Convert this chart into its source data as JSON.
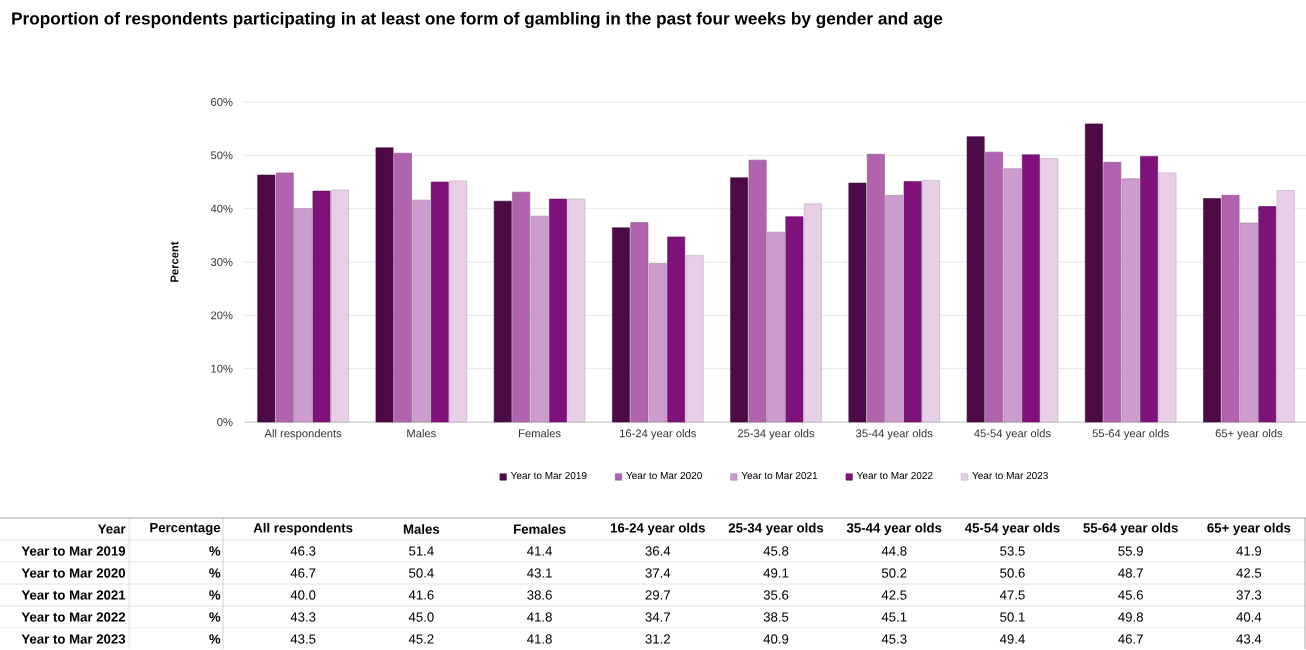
{
  "chart_data": {
    "type": "bar",
    "title": "Proportion of respondents participating in at least one form of gambling in the past four weeks by gender and age",
    "ylabel": "Percent",
    "categories": [
      "All respondents",
      "Males",
      "Females",
      "16-24 year olds",
      "25-34 year olds",
      "35-44 year olds",
      "45-54 year olds",
      "55-64 year olds",
      "65+ year olds"
    ],
    "series": [
      {
        "name": "Year to Mar 2019",
        "color": "#4d0a47",
        "values": [
          46.3,
          51.4,
          41.4,
          36.4,
          45.8,
          44.8,
          53.5,
          55.9,
          41.9
        ],
        "value_labels": [
          "46.3",
          "51.4",
          "41.4",
          "36.4",
          "45.8",
          "44.8",
          "53.5",
          "55.9",
          "41.9"
        ]
      },
      {
        "name": "Year to Mar 2020",
        "color": "#b263b0",
        "values": [
          46.7,
          50.4,
          43.1,
          37.4,
          49.1,
          50.2,
          50.6,
          48.7,
          42.5
        ],
        "value_labels": [
          "46.7",
          "50.4",
          "43.1",
          "37.4",
          "49.1",
          "50.2",
          "50.6",
          "48.7",
          "42.5"
        ]
      },
      {
        "name": "Year to Mar 2021",
        "color": "#cc9ccc",
        "values": [
          40.0,
          41.6,
          38.6,
          29.7,
          35.6,
          42.5,
          47.5,
          45.6,
          37.3
        ],
        "value_labels": [
          "40.0",
          "41.6",
          "38.6",
          "29.7",
          "35.6",
          "42.5",
          "47.5",
          "45.6",
          "37.3"
        ]
      },
      {
        "name": "Year to Mar 2022",
        "color": "#7e117a",
        "values": [
          43.3,
          45.0,
          41.8,
          34.7,
          38.5,
          45.1,
          50.1,
          49.8,
          40.4
        ],
        "value_labels": [
          "43.3",
          "45.0",
          "41.8",
          "34.7",
          "38.5",
          "45.1",
          "50.1",
          "49.8",
          "40.4"
        ]
      },
      {
        "name": "Year to Mar 2023",
        "color": "#e8cfe8",
        "values": [
          43.5,
          45.2,
          41.8,
          31.2,
          40.9,
          45.3,
          49.4,
          46.7,
          43.4
        ],
        "value_labels": [
          "43.5",
          "45.2",
          "41.8",
          "31.2",
          "40.9",
          "45.3",
          "49.4",
          "46.7",
          "43.4"
        ]
      }
    ],
    "ylim": [
      0,
      60
    ],
    "yticks": [
      {
        "value": 0,
        "label": "0%"
      },
      {
        "value": 10,
        "label": "10%"
      },
      {
        "value": 20,
        "label": "20%"
      },
      {
        "value": 30,
        "label": "30%"
      },
      {
        "value": 40,
        "label": "40%"
      },
      {
        "value": 50,
        "label": "50%"
      },
      {
        "value": 60,
        "label": "60%"
      }
    ],
    "grid": "y",
    "legend": "bottom",
    "annotations": [
      "Year",
      "Percentage",
      "%"
    ]
  }
}
